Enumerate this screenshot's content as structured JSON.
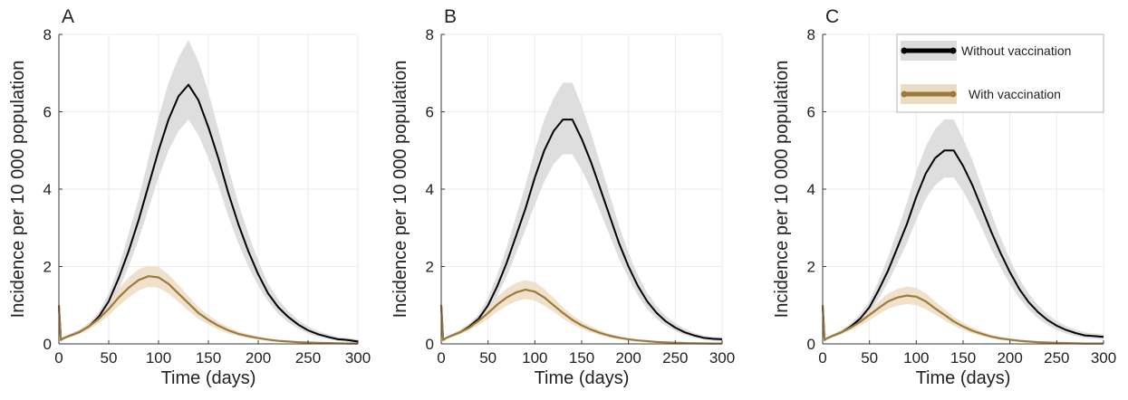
{
  "colors": {
    "without_line": "#000000",
    "without_band": "#dcdcdc",
    "with_line": "#9c7a3c",
    "with_band": "#ecdcc2",
    "grid": "#ebebeb",
    "axis": "#3a3a3a"
  },
  "legend": {
    "panel": "C",
    "placement": "top-right",
    "items": [
      {
        "label": "Without vaccination",
        "color": "#000000",
        "band": "#dcdcdc"
      },
      {
        "label": "With vaccination",
        "color": "#9c7a3c",
        "band": "#ecdcc2"
      }
    ]
  },
  "chart_data": [
    {
      "type": "line",
      "panel_label": "A",
      "xlabel": "Time (days)",
      "ylabel": "Incidence per 10 000 population",
      "xlim": [
        0,
        300
      ],
      "ylim": [
        0,
        8
      ],
      "xticks": [
        0,
        50,
        100,
        150,
        200,
        250,
        300
      ],
      "yticks": [
        0,
        2,
        4,
        6,
        8
      ],
      "grid": true,
      "x": [
        0,
        2,
        5,
        10,
        20,
        30,
        40,
        50,
        60,
        70,
        80,
        90,
        100,
        110,
        120,
        130,
        140,
        150,
        160,
        170,
        180,
        190,
        200,
        210,
        220,
        230,
        240,
        250,
        260,
        270,
        280,
        290,
        300
      ],
      "series": [
        {
          "name": "Without vaccination",
          "values": [
            1.0,
            0.1,
            0.15,
            0.2,
            0.3,
            0.45,
            0.7,
            1.1,
            1.7,
            2.4,
            3.2,
            4.1,
            5.0,
            5.8,
            6.4,
            6.7,
            6.3,
            5.6,
            4.8,
            3.9,
            3.1,
            2.4,
            1.8,
            1.3,
            0.95,
            0.7,
            0.5,
            0.35,
            0.25,
            0.18,
            0.12,
            0.1,
            0.06
          ],
          "lower": [
            1.0,
            0.08,
            0.12,
            0.17,
            0.25,
            0.38,
            0.58,
            0.9,
            1.4,
            2.0,
            2.7,
            3.5,
            4.3,
            5.0,
            5.5,
            5.8,
            5.4,
            4.8,
            4.1,
            3.3,
            2.6,
            2.0,
            1.5,
            1.1,
            0.78,
            0.56,
            0.4,
            0.27,
            0.18,
            0.12,
            0.08,
            0.05,
            0.02
          ],
          "upper": [
            1.0,
            0.13,
            0.19,
            0.25,
            0.36,
            0.53,
            0.82,
            1.3,
            2.0,
            2.85,
            3.75,
            4.8,
            5.85,
            6.75,
            7.4,
            7.85,
            7.3,
            6.5,
            5.55,
            4.55,
            3.65,
            2.85,
            2.15,
            1.55,
            1.15,
            0.85,
            0.62,
            0.45,
            0.33,
            0.25,
            0.18,
            0.15,
            0.12
          ]
        },
        {
          "name": "With vaccination",
          "values": [
            1.0,
            0.1,
            0.15,
            0.2,
            0.3,
            0.45,
            0.65,
            0.9,
            1.2,
            1.45,
            1.65,
            1.75,
            1.72,
            1.55,
            1.3,
            1.05,
            0.8,
            0.62,
            0.47,
            0.35,
            0.26,
            0.2,
            0.15,
            0.11,
            0.08,
            0.06,
            0.045,
            0.035,
            0.025,
            0.02,
            0.015,
            0.01,
            0.01
          ],
          "lower": [
            1.0,
            0.08,
            0.12,
            0.17,
            0.25,
            0.37,
            0.53,
            0.74,
            0.98,
            1.2,
            1.38,
            1.48,
            1.45,
            1.3,
            1.08,
            0.86,
            0.65,
            0.5,
            0.37,
            0.27,
            0.2,
            0.15,
            0.11,
            0.08,
            0.055,
            0.04,
            0.03,
            0.02,
            0.015,
            0.01,
            0.005,
            0.0,
            0.0
          ],
          "upper": [
            1.0,
            0.12,
            0.18,
            0.24,
            0.35,
            0.53,
            0.77,
            1.06,
            1.42,
            1.72,
            1.93,
            2.02,
            1.99,
            1.8,
            1.52,
            1.24,
            0.95,
            0.74,
            0.57,
            0.43,
            0.32,
            0.25,
            0.19,
            0.14,
            0.1,
            0.08,
            0.06,
            0.05,
            0.035,
            0.03,
            0.025,
            0.02,
            0.02
          ]
        }
      ]
    },
    {
      "type": "line",
      "panel_label": "B",
      "xlabel": "Time (days)",
      "ylabel": "Incidence per 10 000 population",
      "xlim": [
        0,
        300
      ],
      "ylim": [
        0,
        8
      ],
      "xticks": [
        0,
        50,
        100,
        150,
        200,
        250,
        300
      ],
      "yticks": [
        0,
        2,
        4,
        6,
        8
      ],
      "grid": true,
      "x": [
        0,
        2,
        5,
        10,
        20,
        30,
        40,
        50,
        60,
        70,
        80,
        90,
        100,
        110,
        120,
        130,
        140,
        150,
        160,
        170,
        180,
        190,
        200,
        210,
        220,
        230,
        240,
        250,
        260,
        270,
        280,
        290,
        300
      ],
      "series": [
        {
          "name": "Without vaccination",
          "values": [
            1.0,
            0.1,
            0.15,
            0.2,
            0.3,
            0.45,
            0.65,
            1.0,
            1.5,
            2.1,
            2.8,
            3.5,
            4.3,
            5.0,
            5.5,
            5.8,
            5.8,
            5.3,
            4.7,
            4.0,
            3.3,
            2.6,
            2.0,
            1.5,
            1.1,
            0.8,
            0.58,
            0.42,
            0.3,
            0.22,
            0.16,
            0.13,
            0.12
          ],
          "lower": [
            1.0,
            0.08,
            0.12,
            0.17,
            0.25,
            0.38,
            0.55,
            0.83,
            1.25,
            1.75,
            2.35,
            2.95,
            3.6,
            4.2,
            4.65,
            4.9,
            4.9,
            4.5,
            4.0,
            3.4,
            2.8,
            2.2,
            1.7,
            1.25,
            0.9,
            0.65,
            0.46,
            0.33,
            0.23,
            0.16,
            0.11,
            0.08,
            0.07
          ],
          "upper": [
            1.0,
            0.12,
            0.18,
            0.24,
            0.36,
            0.53,
            0.77,
            1.2,
            1.8,
            2.5,
            3.3,
            4.1,
            5.0,
            5.8,
            6.35,
            6.75,
            6.75,
            6.15,
            5.45,
            4.65,
            3.85,
            3.05,
            2.35,
            1.78,
            1.32,
            0.97,
            0.72,
            0.53,
            0.39,
            0.29,
            0.22,
            0.18,
            0.17
          ]
        },
        {
          "name": "With vaccination",
          "values": [
            1.0,
            0.1,
            0.15,
            0.2,
            0.3,
            0.42,
            0.6,
            0.8,
            1.02,
            1.2,
            1.33,
            1.4,
            1.35,
            1.2,
            1.0,
            0.8,
            0.62,
            0.48,
            0.37,
            0.28,
            0.21,
            0.16,
            0.12,
            0.09,
            0.07,
            0.05,
            0.04,
            0.03,
            0.02,
            0.015,
            0.012,
            0.01,
            0.01
          ],
          "lower": [
            1.0,
            0.08,
            0.12,
            0.17,
            0.25,
            0.35,
            0.49,
            0.65,
            0.84,
            0.99,
            1.1,
            1.16,
            1.12,
            0.99,
            0.83,
            0.66,
            0.51,
            0.39,
            0.3,
            0.22,
            0.16,
            0.12,
            0.09,
            0.065,
            0.05,
            0.035,
            0.025,
            0.018,
            0.012,
            0.008,
            0.005,
            0.0,
            0.0
          ],
          "upper": [
            1.0,
            0.12,
            0.18,
            0.24,
            0.35,
            0.5,
            0.72,
            0.96,
            1.22,
            1.43,
            1.58,
            1.65,
            1.6,
            1.42,
            1.19,
            0.95,
            0.74,
            0.58,
            0.45,
            0.35,
            0.26,
            0.2,
            0.15,
            0.12,
            0.09,
            0.07,
            0.055,
            0.045,
            0.035,
            0.025,
            0.02,
            0.02,
            0.02
          ]
        }
      ]
    },
    {
      "type": "line",
      "panel_label": "C",
      "xlabel": "Time (days)",
      "ylabel": "Incidence per 10 000 population",
      "xlim": [
        0,
        300
      ],
      "ylim": [
        0,
        8
      ],
      "xticks": [
        0,
        50,
        100,
        150,
        200,
        250,
        300
      ],
      "yticks": [
        0,
        2,
        4,
        6,
        8
      ],
      "grid": true,
      "x": [
        0,
        2,
        5,
        10,
        20,
        30,
        40,
        50,
        60,
        70,
        80,
        90,
        100,
        110,
        120,
        130,
        140,
        150,
        160,
        170,
        180,
        190,
        200,
        210,
        220,
        230,
        240,
        250,
        260,
        270,
        280,
        290,
        300
      ],
      "series": [
        {
          "name": "Without vaccination",
          "values": [
            1.0,
            0.1,
            0.15,
            0.2,
            0.3,
            0.45,
            0.65,
            0.95,
            1.4,
            1.9,
            2.5,
            3.1,
            3.8,
            4.4,
            4.8,
            5.0,
            5.0,
            4.6,
            4.1,
            3.5,
            2.9,
            2.35,
            1.85,
            1.42,
            1.08,
            0.82,
            0.62,
            0.47,
            0.36,
            0.28,
            0.22,
            0.2,
            0.18
          ],
          "lower": [
            1.0,
            0.08,
            0.12,
            0.17,
            0.25,
            0.38,
            0.55,
            0.8,
            1.17,
            1.6,
            2.1,
            2.6,
            3.2,
            3.75,
            4.1,
            4.3,
            4.3,
            3.95,
            3.5,
            3.0,
            2.45,
            1.98,
            1.55,
            1.18,
            0.89,
            0.66,
            0.49,
            0.36,
            0.27,
            0.2,
            0.15,
            0.13,
            0.11
          ],
          "upper": [
            1.0,
            0.12,
            0.18,
            0.24,
            0.36,
            0.53,
            0.77,
            1.12,
            1.65,
            2.25,
            2.95,
            3.65,
            4.45,
            5.1,
            5.55,
            5.8,
            5.8,
            5.3,
            4.75,
            4.05,
            3.38,
            2.75,
            2.18,
            1.68,
            1.3,
            1.0,
            0.77,
            0.59,
            0.46,
            0.37,
            0.3,
            0.27,
            0.25
          ]
        },
        {
          "name": "With vaccination",
          "values": [
            1.0,
            0.1,
            0.15,
            0.2,
            0.3,
            0.42,
            0.57,
            0.75,
            0.93,
            1.1,
            1.2,
            1.25,
            1.22,
            1.1,
            0.92,
            0.75,
            0.58,
            0.45,
            0.34,
            0.26,
            0.19,
            0.14,
            0.11,
            0.08,
            0.06,
            0.045,
            0.035,
            0.025,
            0.02,
            0.015,
            0.01,
            0.01,
            0.01
          ],
          "lower": [
            1.0,
            0.08,
            0.12,
            0.17,
            0.25,
            0.35,
            0.47,
            0.62,
            0.77,
            0.91,
            0.99,
            1.03,
            1.0,
            0.9,
            0.76,
            0.61,
            0.47,
            0.36,
            0.27,
            0.2,
            0.15,
            0.11,
            0.08,
            0.06,
            0.04,
            0.03,
            0.02,
            0.015,
            0.01,
            0.005,
            0.0,
            0.0,
            0.0
          ],
          "upper": [
            1.0,
            0.12,
            0.18,
            0.24,
            0.35,
            0.5,
            0.68,
            0.89,
            1.1,
            1.3,
            1.42,
            1.48,
            1.45,
            1.31,
            1.1,
            0.9,
            0.7,
            0.55,
            0.42,
            0.32,
            0.24,
            0.18,
            0.14,
            0.11,
            0.08,
            0.065,
            0.05,
            0.04,
            0.03,
            0.025,
            0.02,
            0.02,
            0.02
          ]
        }
      ]
    }
  ]
}
